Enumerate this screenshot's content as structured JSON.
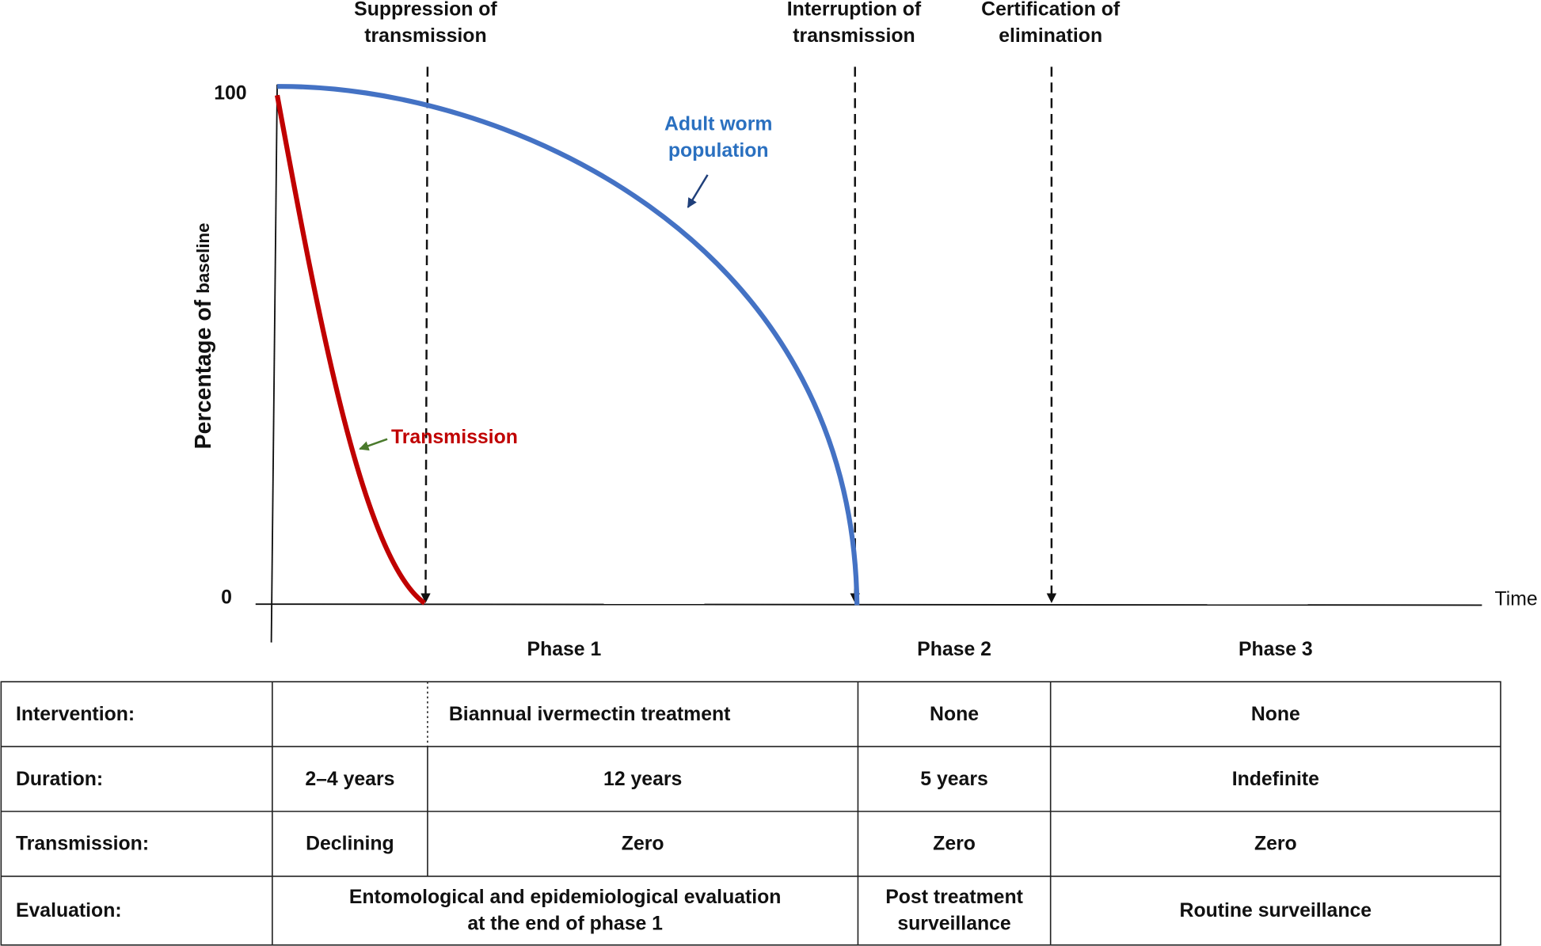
{
  "milestones": [
    [
      "Suppression of",
      "transmission"
    ],
    [
      "Interruption of",
      "transmission"
    ],
    [
      "Certification of",
      "elimination"
    ]
  ],
  "axis": {
    "y_label": "Percentage of",
    "y_label_small": "baseline",
    "y_top": "100",
    "y_bottom": "0",
    "x_label": "Time"
  },
  "curves": {
    "adult_worm": [
      "Adult worm",
      "population"
    ],
    "transmission": "Transmission"
  },
  "phases": [
    "Phase 1",
    "Phase 2",
    "Phase 3"
  ],
  "table": {
    "rows": [
      {
        "label": "Intervention:",
        "cells": [
          "Biannual ivermectin treatment",
          "None",
          "None"
        ]
      },
      {
        "label": "Duration:",
        "cells": [
          "2–4 years",
          "12 years",
          "5 years",
          "Indefinite"
        ]
      },
      {
        "label": "Transmission:",
        "cells": [
          "Declining",
          "Zero",
          "Zero",
          "Zero"
        ]
      },
      {
        "label": "Evaluation:",
        "cells": [
          [
            "Entomological and epidemiological evaluation",
            "at the end of phase 1"
          ],
          [
            "Post treatment",
            "surveillance"
          ],
          "Routine surveillance"
        ]
      }
    ]
  }
}
